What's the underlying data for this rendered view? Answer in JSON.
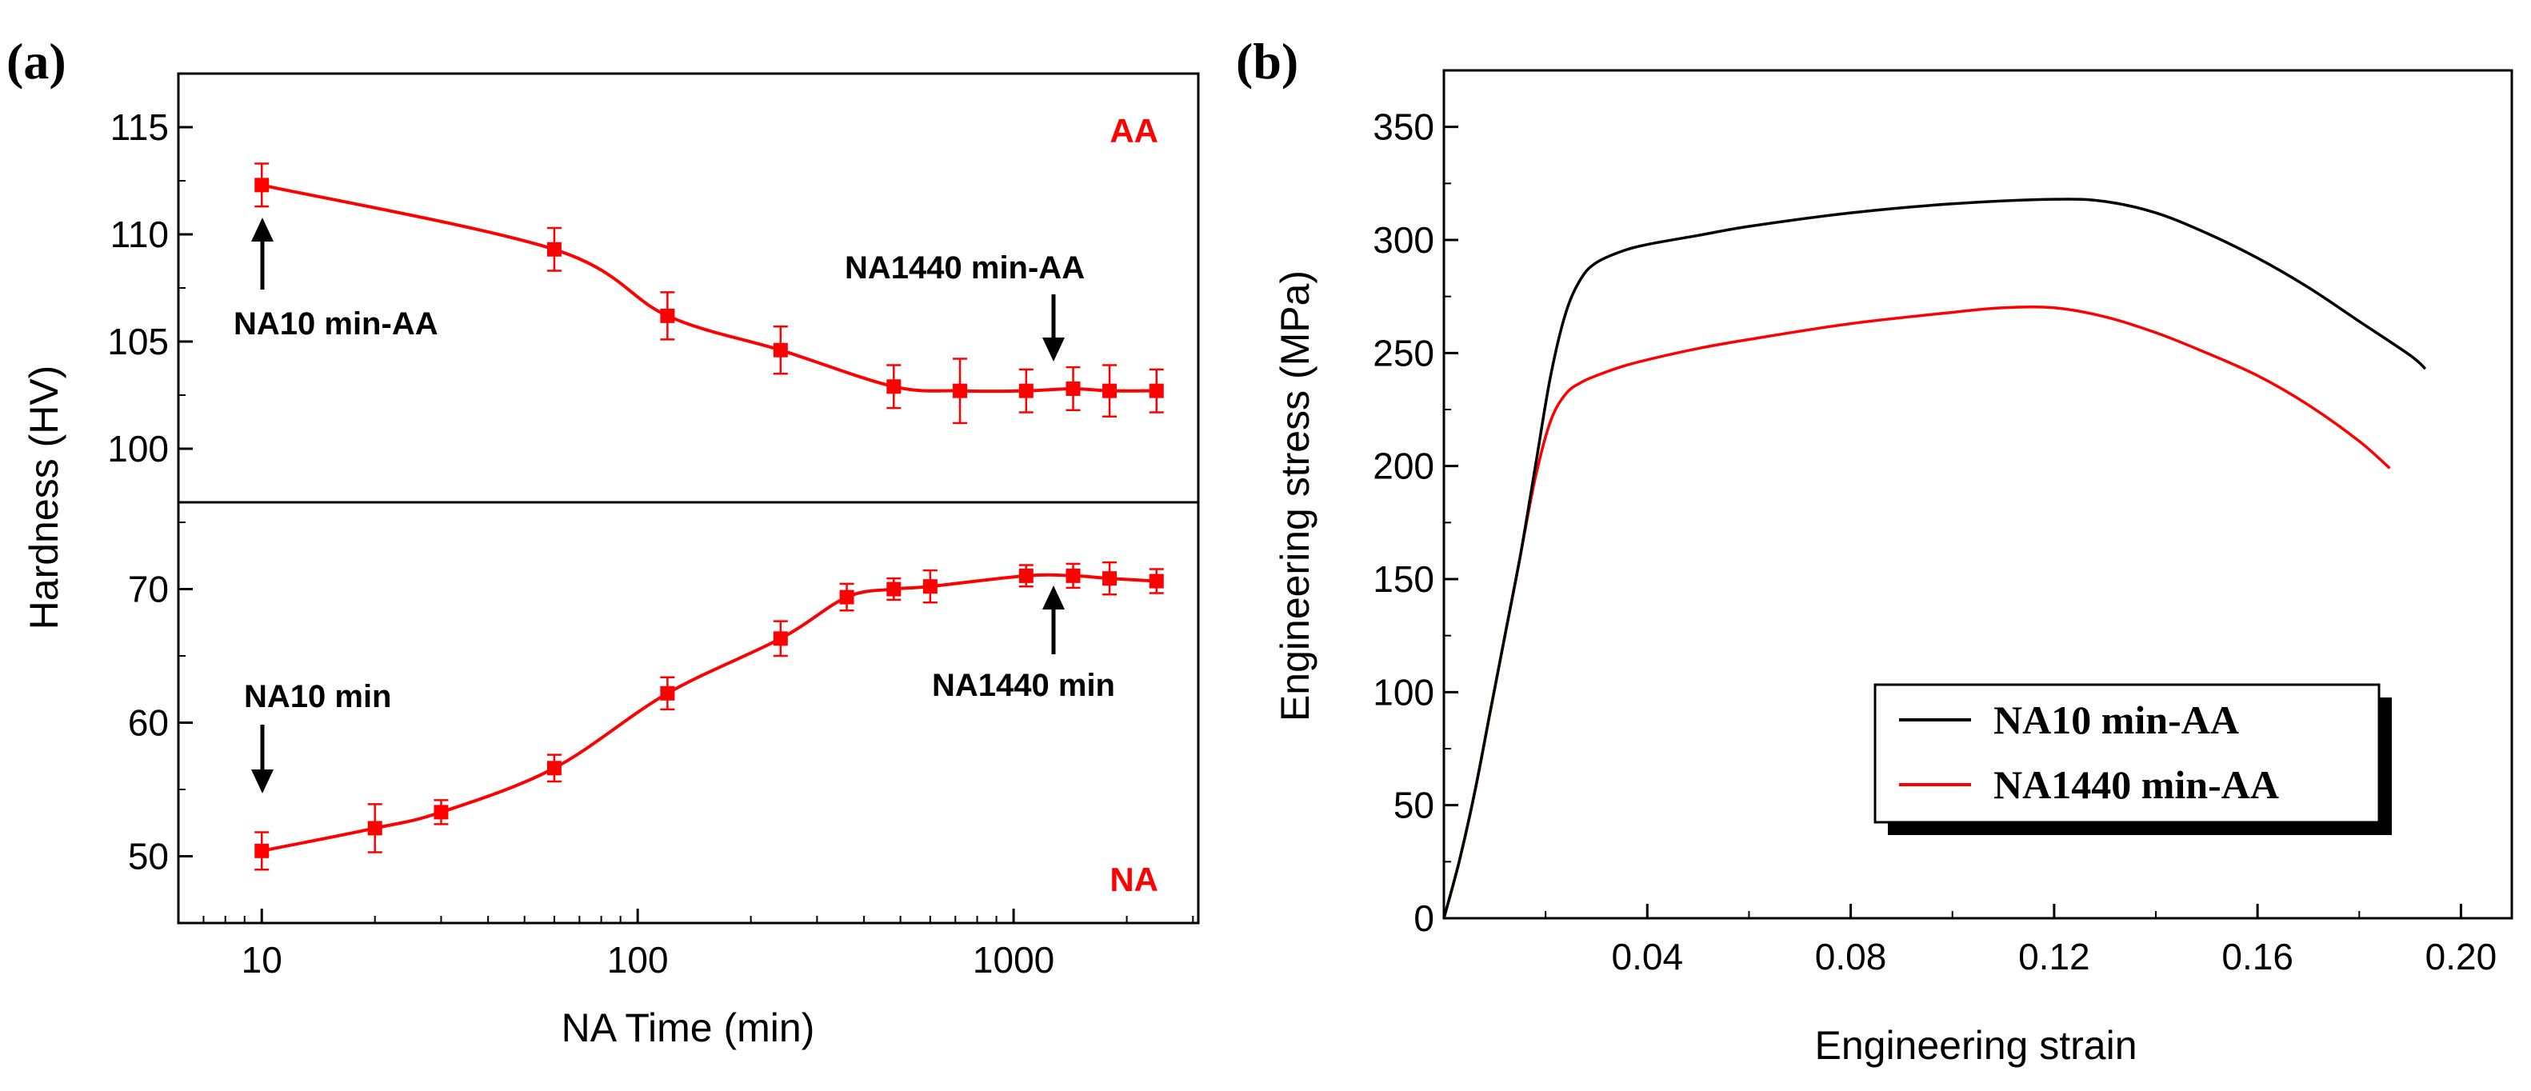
{
  "colors": {
    "red": "#ff0000",
    "black": "#000000"
  },
  "chart_data": [
    {
      "panel": "(a)",
      "type": "line",
      "xscale": "log",
      "xlabel": "NA Time (min)",
      "ylabel": "Hardness (HV)",
      "xticks": [
        "10",
        "100",
        "1000"
      ],
      "xtick_values": [
        10,
        100,
        1000
      ],
      "subplots": [
        {
          "name": "AA",
          "ylim": [
            97.5,
            117.5
          ],
          "yticks": [
            "100",
            "105",
            "110",
            "115"
          ],
          "ytick_values": [
            100,
            105,
            110,
            115
          ],
          "series": [
            {
              "name": "AA",
              "color": "#ff0000",
              "x": [
                10,
                60,
                120,
                240,
                480,
                720,
                1080,
                1440,
                1800,
                2400
              ],
              "y": [
                112.3,
                109.3,
                106.2,
                104.6,
                102.9,
                102.7,
                102.7,
                102.8,
                102.7,
                102.7
              ],
              "err": [
                1.0,
                1.0,
                1.1,
                1.1,
                1.0,
                1.5,
                1.0,
                1.0,
                1.2,
                1.0
              ]
            }
          ],
          "annotations": [
            {
              "text": "NA10 min-AA",
              "x": 10
            },
            {
              "text": "NA1440 min-AA",
              "x": 1440
            }
          ]
        },
        {
          "name": "NA",
          "ylim": [
            45,
            76.5
          ],
          "yticks": [
            "50",
            "60",
            "70"
          ],
          "ytick_values": [
            50,
            60,
            70
          ],
          "series": [
            {
              "name": "NA",
              "color": "#ff0000",
              "x": [
                10,
                20,
                30,
                60,
                120,
                240,
                360,
                480,
                600,
                1080,
                1440,
                1800,
                2400
              ],
              "y": [
                50.4,
                52.1,
                53.3,
                56.6,
                62.2,
                66.3,
                69.4,
                70.0,
                70.2,
                71.0,
                71.0,
                70.8,
                70.6
              ],
              "err": [
                1.4,
                1.8,
                0.9,
                1.0,
                1.2,
                1.3,
                1.0,
                0.8,
                1.2,
                0.8,
                0.9,
                1.2,
                0.9
              ]
            }
          ],
          "annotations": [
            {
              "text": "NA10 min",
              "x": 10
            },
            {
              "text": "NA1440 min",
              "x": 1440
            }
          ]
        }
      ]
    },
    {
      "panel": "(b)",
      "type": "line",
      "xlabel": "Engineering strain",
      "ylabel": "Engineering stress (MPa)",
      "xlim": [
        0,
        0.21
      ],
      "ylim": [
        0,
        375
      ],
      "xticks": [
        "0.04",
        "0.08",
        "0.12",
        "0.16",
        "0.20"
      ],
      "xtick_values": [
        0.04,
        0.08,
        0.12,
        0.16,
        0.2
      ],
      "yticks": [
        "0",
        "50",
        "100",
        "150",
        "200",
        "250",
        "300",
        "350"
      ],
      "ytick_values": [
        0,
        50,
        100,
        150,
        200,
        250,
        300,
        350
      ],
      "legend_position": "bottom-right",
      "series": [
        {
          "name": "NA10 min-AA",
          "color": "#000000",
          "x": [
            0,
            0.003,
            0.006,
            0.009,
            0.012,
            0.015,
            0.018,
            0.021,
            0.024,
            0.027,
            0.03,
            0.035,
            0.04,
            0.05,
            0.06,
            0.08,
            0.1,
            0.12,
            0.13,
            0.14,
            0.15,
            0.16,
            0.17,
            0.18,
            0.19,
            0.193
          ],
          "y": [
            0,
            25,
            55,
            90,
            125,
            160,
            200,
            240,
            268,
            283,
            290,
            295,
            298,
            302,
            306,
            312,
            316,
            318,
            317,
            312,
            303,
            292,
            279,
            264,
            249,
            243
          ]
        },
        {
          "name": "NA1440 min-AA",
          "color": "#ff0000",
          "x": [
            0,
            0.003,
            0.006,
            0.009,
            0.012,
            0.015,
            0.018,
            0.021,
            0.024,
            0.027,
            0.03,
            0.035,
            0.04,
            0.05,
            0.06,
            0.08,
            0.1,
            0.11,
            0.12,
            0.13,
            0.14,
            0.15,
            0.16,
            0.17,
            0.18,
            0.186
          ],
          "y": [
            0,
            25,
            55,
            90,
            125,
            160,
            195,
            220,
            232,
            237,
            240,
            244,
            247,
            252,
            256,
            263,
            268,
            270,
            270,
            266,
            259,
            250,
            240,
            227,
            211,
            199
          ]
        }
      ]
    }
  ]
}
